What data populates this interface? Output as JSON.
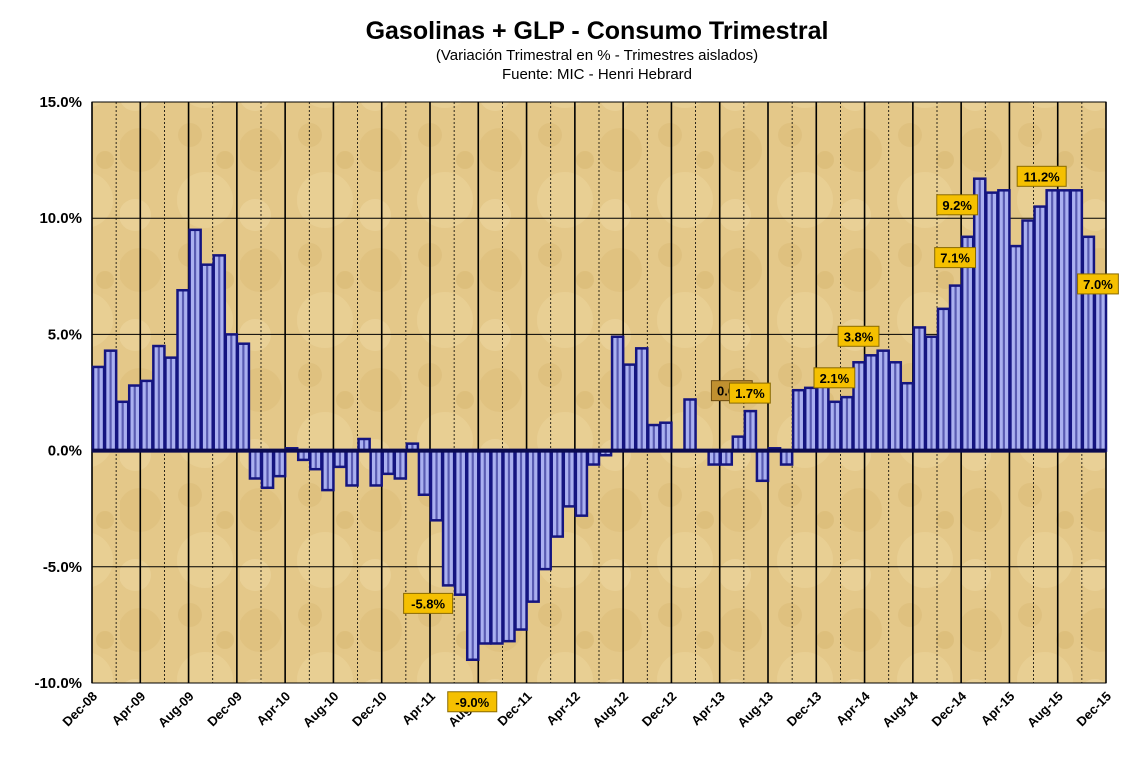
{
  "chart_data": {
    "type": "bar",
    "title": "Gasolinas + GLP - Consumo Trimestral",
    "subtitle": "(Variación Trimestral en % - Trimestres aislados)",
    "source": "Fuente: MIC - Henri Hebrard",
    "ylim": [
      -10,
      15
    ],
    "yticks": [
      "15.0%",
      "10.0%",
      "5.0%",
      "0.0%",
      "-5.0%",
      "-10.0%"
    ],
    "ytick_values": [
      15,
      10,
      5,
      0,
      -5,
      -10
    ],
    "xticks": [
      "Dec-08",
      "Apr-09",
      "Aug-09",
      "Dec-09",
      "Apr-10",
      "Aug-10",
      "Dec-10",
      "Apr-11",
      "Aug-11",
      "Dec-11",
      "Apr-12",
      "Aug-12",
      "Dec-12",
      "Apr-13",
      "Aug-13",
      "Dec-13",
      "Apr-14",
      "Aug-14",
      "Dec-14",
      "Apr-15",
      "Aug-15",
      "Dec-15"
    ],
    "grid": true,
    "colors": {
      "bar_fill": "#aab0f0",
      "bar_stripe": "#151580",
      "zero_line": "#0a0a50",
      "label_bg": "#f5c000",
      "label_bg_dark": "#c09030",
      "plot_bg": "#e4c889"
    },
    "values": [
      3.6,
      4.3,
      2.1,
      2.8,
      3.0,
      4.5,
      4.0,
      6.9,
      9.5,
      8.0,
      8.4,
      5.0,
      4.6,
      -1.2,
      -1.6,
      -1.1,
      0.1,
      -0.4,
      -0.8,
      -1.7,
      -0.7,
      -1.5,
      0.5,
      -1.5,
      -1.0,
      -1.2,
      0.3,
      -1.9,
      -3.0,
      -5.8,
      -6.2,
      -9.0,
      -8.3,
      -8.3,
      -8.2,
      -7.7,
      -6.5,
      -5.1,
      -3.7,
      -2.4,
      -2.8,
      -0.6,
      -0.2,
      4.9,
      3.7,
      4.4,
      1.1,
      1.2,
      0.0,
      2.2,
      0.0,
      -0.6,
      -0.6,
      0.6,
      1.7,
      -1.3,
      0.1,
      -0.6,
      2.6,
      2.7,
      3.5,
      2.1,
      2.3,
      3.8,
      4.1,
      4.3,
      3.8,
      2.9,
      5.3,
      4.9,
      6.1,
      7.1,
      9.2,
      11.7,
      11.1,
      11.2,
      8.8,
      9.9,
      10.5,
      11.2,
      11.2,
      11.2,
      9.2,
      7.0
    ],
    "annotations": [
      {
        "index": 29,
        "text": "-5.8%",
        "style": "light"
      },
      {
        "index": 31,
        "text": "-9.0%",
        "style": "light"
      },
      {
        "index": 53,
        "text": "0.6%",
        "style": "dark"
      },
      {
        "index": 54,
        "text": "1.7%",
        "style": "light"
      },
      {
        "index": 61,
        "text": "2.1%",
        "style": "light"
      },
      {
        "index": 63,
        "text": "3.8%",
        "style": "light"
      },
      {
        "index": 71,
        "text": "7.1%",
        "style": "light"
      },
      {
        "index": 72,
        "text": "9.2%",
        "style": "light"
      },
      {
        "index": 79,
        "text": "11.2%",
        "style": "light"
      },
      {
        "index": 83,
        "text": "7.0%",
        "style": "light"
      }
    ]
  }
}
